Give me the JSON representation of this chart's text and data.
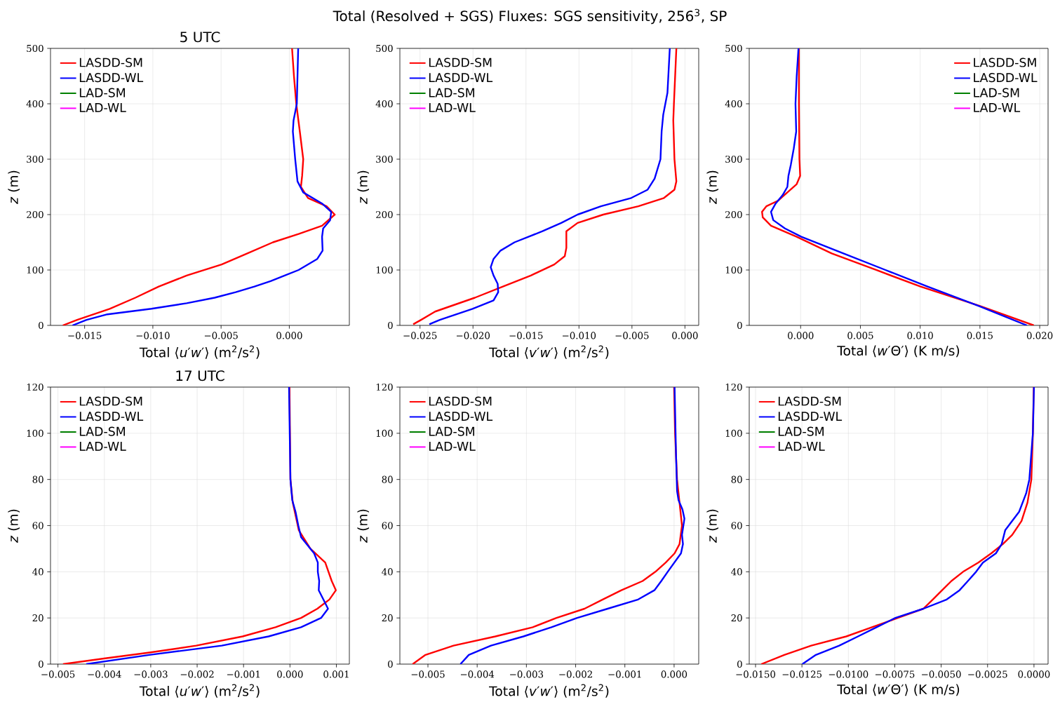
{
  "chart_data": [
    {
      "type": "line",
      "title": "5 UTC",
      "annotations": [
        "Total (Resolved + SGS) Fluxes: SGS sensitivity, 256$^{3}$, SP"
      ],
      "xlabel": "Total ⟨*u*′*w*′⟩ (m$^{2}$/s$^{2}$)",
      "ylabel": "*z* (m)",
      "xlim": [
        -0.0175,
        0.0044
      ],
      "ylim": [
        0,
        500
      ],
      "xticks": [
        {
          "value": -0.015,
          "label": "−0.015"
        },
        {
          "value": -0.01,
          "label": "−0.010"
        },
        {
          "value": -0.005,
          "label": "−0.005"
        },
        {
          "value": 0,
          "label": "0.000"
        }
      ],
      "yticks": [
        0,
        100,
        200,
        300,
        400,
        500
      ],
      "grid": true,
      "legend": "top left",
      "series": [
        {
          "name": "LASDD-SM",
          "color": "#ff0000",
          "x": [
            -0.0166,
            -0.01555,
            -0.01316,
            -0.01128,
            -0.00957,
            -0.00752,
            -0.00496,
            -0.00308,
            -0.0012,
            0.00068,
            0.0024,
            0.00333,
            0.00273,
            0.00137,
            0.00085,
            0.00094,
            0.00102,
            0.00077,
            0.00051,
            0.00034,
            0.0002
          ],
          "values": [
            0,
            10,
            30,
            50,
            70,
            90,
            110,
            130,
            150,
            165,
            180,
            200,
            215,
            230,
            250,
            270,
            300,
            350,
            400,
            450,
            500
          ]
        },
        {
          "name": "LASDD-WL",
          "color": "#0000ff",
          "x": [
            -0.01589,
            -0.01486,
            -0.01333,
            -0.0101,
            -0.00752,
            -0.00547,
            -0.00393,
            -0.00256,
            -0.00137,
            -0.00034,
            0.00068,
            0.00205,
            0.00244,
            0.0024,
            0.00248,
            0.00299,
            0.00307,
            0.0024,
            0.00102,
            0.0006,
            0.00043,
            0.00026,
            0.00031,
            0.00055,
            0.00065
          ],
          "values": [
            0,
            10,
            20,
            30,
            40,
            50,
            60,
            70,
            80,
            90,
            100,
            120,
            135,
            160,
            175,
            190,
            205,
            220,
            240,
            260,
            300,
            350,
            370,
            400,
            500
          ]
        },
        {
          "name": "LAD-SM",
          "color": "#008000"
        },
        {
          "name": "LAD-WL",
          "color": "#ff00ff"
        }
      ]
    },
    {
      "type": "line",
      "xlabel": "Total ⟨*v*′*w*′⟩ (m$^{2}$/s$^{2}$)",
      "ylabel": "*z* (m)",
      "xlim": [
        -0.0269,
        0.0013
      ],
      "ylim": [
        0,
        500
      ],
      "xticks": [
        {
          "value": -0.025,
          "label": "−0.025"
        },
        {
          "value": -0.02,
          "label": "−0.020"
        },
        {
          "value": -0.015,
          "label": "−0.015"
        },
        {
          "value": -0.01,
          "label": "−0.010"
        },
        {
          "value": -0.005,
          "label": "−0.005"
        },
        {
          "value": 0,
          "label": "0.000"
        }
      ],
      "yticks": [
        0,
        100,
        200,
        300,
        400,
        500
      ],
      "grid": true,
      "legend": "top left",
      "series": [
        {
          "name": "LASDD-SM",
          "color": "#ff0000",
          "x": [
            -0.02564,
            -0.0249,
            -0.02357,
            -0.01982,
            -0.01718,
            -0.01454,
            -0.01233,
            -0.01134,
            -0.01119,
            -0.01119,
            -0.01013,
            -0.00771,
            -0.0044,
            -0.00198,
            -0.00099,
            -0.00081,
            -0.00099,
            -0.0011,
            -0.00104,
            -0.00081
          ],
          "values": [
            2,
            10,
            25,
            50,
            70,
            90,
            110,
            125,
            140,
            170,
            185,
            200,
            215,
            230,
            245,
            260,
            300,
            370,
            400,
            500
          ]
        },
        {
          "name": "LASDD-WL",
          "color": "#0000ff",
          "x": [
            -0.02412,
            -0.02313,
            -0.02004,
            -0.01806,
            -0.01762,
            -0.01767,
            -0.01806,
            -0.01833,
            -0.01806,
            -0.0174,
            -0.01608,
            -0.01344,
            -0.01167,
            -0.01013,
            -0.00793,
            -0.00507,
            -0.00352,
            -0.00286,
            -0.00231,
            -0.0022,
            -0.00205,
            -0.00165,
            -0.00143
          ],
          "values": [
            2,
            10,
            30,
            45,
            60,
            75,
            90,
            105,
            120,
            135,
            150,
            170,
            185,
            200,
            215,
            230,
            245,
            265,
            300,
            350,
            380,
            420,
            500
          ]
        },
        {
          "name": "LAD-SM",
          "color": "#008000"
        },
        {
          "name": "LAD-WL",
          "color": "#ff00ff"
        }
      ]
    },
    {
      "type": "line",
      "xlabel": "Total ⟨*w*′Θ′⟩ (K m/s)",
      "ylabel": "*z* (m)",
      "xlim": [
        -0.0043,
        0.0207
      ],
      "ylim": [
        0,
        500
      ],
      "xticks": [
        {
          "value": 0,
          "label": "0.000"
        },
        {
          "value": 0.005,
          "label": "0.005"
        },
        {
          "value": 0.01,
          "label": "0.010"
        },
        {
          "value": 0.015,
          "label": "0.015"
        },
        {
          "value": 0.02,
          "label": "0.020"
        }
      ],
      "yticks": [
        0,
        100,
        200,
        300,
        400,
        500
      ],
      "grid": true,
      "legend": "top right",
      "series": [
        {
          "name": "LASDD-SM",
          "color": "#ff0000",
          "x": [
            0.01951,
            0.01501,
            0.01003,
            0.00632,
            0.0026,
            -0.00033,
            -0.00248,
            -0.00317,
            -0.00323,
            -0.00287,
            -0.0019,
            -0.00111,
            -0.00033,
            -4e-05,
            -0.0001,
            -0.00014,
            -0.00014
          ],
          "values": [
            0,
            35,
            70,
            100,
            130,
            160,
            180,
            195,
            205,
            215,
            225,
            240,
            255,
            270,
            300,
            400,
            500
          ]
        },
        {
          "name": "LASDD-WL",
          "color": "#0000ff",
          "x": [
            0.01893,
            0.01491,
            0.01062,
            0.0071,
            0.00358,
            6e-05,
            -0.00131,
            -0.00229,
            -0.00248,
            -0.00209,
            -0.00151,
            -0.00111,
            -0.00102,
            -0.00082,
            -0.00057,
            -0.00037,
            -0.00043,
            -0.00033,
            -0.00018
          ],
          "values": [
            0,
            35,
            70,
            100,
            130,
            160,
            175,
            190,
            205,
            220,
            235,
            250,
            270,
            290,
            320,
            350,
            400,
            450,
            500
          ]
        },
        {
          "name": "LAD-SM",
          "color": "#008000"
        },
        {
          "name": "LAD-WL",
          "color": "#ff00ff"
        }
      ]
    },
    {
      "type": "line",
      "title": "17 UTC",
      "xlabel": "Total ⟨*u*′*w*′⟩ (m$^{2}$/s$^{2}$)",
      "ylabel": "*z* (m)",
      "xlim": [
        -0.00516,
        0.00128
      ],
      "ylim": [
        0,
        120
      ],
      "xticks": [
        {
          "value": -0.005,
          "label": "−0.005"
        },
        {
          "value": -0.004,
          "label": "−0.004"
        },
        {
          "value": -0.003,
          "label": "−0.003"
        },
        {
          "value": -0.002,
          "label": "−0.002"
        },
        {
          "value": -0.001,
          "label": "−0.001"
        },
        {
          "value": 0,
          "label": "0.000"
        },
        {
          "value": 0.001,
          "label": "0.001"
        }
      ],
      "yticks": [
        0,
        20,
        40,
        60,
        80,
        100,
        120
      ],
      "grid": true,
      "legend": "top left",
      "series": [
        {
          "name": "LASDD-SM",
          "color": "#ff0000",
          "x": [
            -0.00489,
            -0.00398,
            -0.00303,
            -0.00202,
            -0.00102,
            -0.00031,
            0.00024,
            0.00059,
            0.00085,
            0.00099,
            0.0009,
            0.00076,
            0.00044,
            0.00019,
            6e-05,
            1e-05,
            -1e-05
          ],
          "values": [
            0,
            2.5,
            5,
            8,
            12,
            16,
            20,
            24,
            28,
            32,
            36,
            44,
            50,
            58,
            70,
            80,
            120
          ]
        },
        {
          "name": "LASDD-WL",
          "color": "#0000ff",
          "x": [
            -0.00439,
            -0.00303,
            -0.00147,
            -0.00046,
            0.00024,
            0.00067,
            0.00082,
            0.00072,
            0.00062,
            0.00063,
            0.0006,
            0.0006,
            0.00052,
            0.00024,
            0.00018,
            0.00012,
            5e-05,
            1e-05,
            -2e-05
          ],
          "values": [
            0,
            4,
            8,
            12,
            16,
            20,
            24,
            28,
            32,
            36,
            40,
            44,
            48,
            55,
            60,
            66,
            71,
            80,
            120
          ]
        },
        {
          "name": "LAD-SM",
          "color": "#008000"
        },
        {
          "name": "LAD-WL",
          "color": "#ff00ff"
        }
      ]
    },
    {
      "type": "line",
      "xlabel": "Total ⟨*v*′*w*′⟩ (m$^{2}$/s$^{2}$)",
      "ylabel": "*z* (m)",
      "xlim": [
        -0.00557,
        0.0005
      ],
      "ylim": [
        0,
        120
      ],
      "xticks": [
        {
          "value": -0.005,
          "label": "−0.005"
        },
        {
          "value": -0.004,
          "label": "−0.004"
        },
        {
          "value": -0.003,
          "label": "−0.003"
        },
        {
          "value": -0.002,
          "label": "−0.002"
        },
        {
          "value": -0.001,
          "label": "−0.001"
        },
        {
          "value": 0,
          "label": "0.000"
        }
      ],
      "yticks": [
        0,
        20,
        40,
        60,
        80,
        100,
        120
      ],
      "grid": true,
      "legend": "top left",
      "series": [
        {
          "name": "LASDD-SM",
          "color": "#ff0000",
          "x": [
            -0.00531,
            -0.00505,
            -0.00448,
            -0.00363,
            -0.00287,
            -0.00239,
            -0.00182,
            -0.00145,
            -0.00107,
            -0.00064,
            -0.00038,
            -0.00017,
            1e-05,
            0.00011,
            0.00016,
            0.00011,
            6e-05,
            2e-05,
            0
          ],
          "values": [
            0,
            4,
            8,
            12,
            16,
            20,
            24,
            28,
            32,
            36,
            40,
            44,
            48,
            52,
            60,
            70,
            80,
            100,
            120
          ]
        },
        {
          "name": "LASDD-WL",
          "color": "#0000ff",
          "x": [
            -0.00434,
            -0.00417,
            -0.00372,
            -0.00306,
            -0.00249,
            -0.00197,
            -0.00135,
            -0.00073,
            -0.0004,
            -0.00026,
            -0.00013,
            0.00014,
            0.00018,
            0.00016,
            0.00021,
            0.00017,
            9e-05,
            6e-05,
            4e-05,
            1e-05
          ],
          "values": [
            0,
            4,
            8,
            12,
            16,
            20,
            24,
            28,
            32,
            36,
            40,
            48,
            52,
            56,
            63,
            67,
            71,
            75,
            90,
            120
          ]
        },
        {
          "name": "LAD-SM",
          "color": "#008000"
        },
        {
          "name": "LAD-WL",
          "color": "#ff00ff"
        }
      ]
    },
    {
      "type": "line",
      "xlabel": "Total ⟨*w*′Θ′⟩ (K m/s)",
      "ylabel": "*z* (m)",
      "xlim": [
        -0.01534,
        0.00076
      ],
      "ylim": [
        0,
        120
      ],
      "xticks": [
        {
          "value": -0.015,
          "label": "−0.0150"
        },
        {
          "value": -0.0125,
          "label": "−0.0125"
        },
        {
          "value": -0.01,
          "label": "−0.0100"
        },
        {
          "value": -0.0075,
          "label": "−0.0075"
        },
        {
          "value": -0.005,
          "label": "−0.0050"
        },
        {
          "value": -0.0025,
          "label": "−0.0025"
        },
        {
          "value": 0,
          "label": "0.0000"
        }
      ],
      "yticks": [
        0,
        20,
        40,
        60,
        80,
        100,
        120
      ],
      "grid": true,
      "legend": "top left",
      "series": [
        {
          "name": "LASDD-SM",
          "color": "#ff0000",
          "x": [
            -0.01469,
            -0.01345,
            -0.012,
            -0.01011,
            -0.00873,
            -0.00734,
            -0.00596,
            -0.00545,
            -0.00495,
            -0.00445,
            -0.00382,
            -0.003,
            -0.0023,
            -0.00168,
            -0.00117,
            -0.00067,
            -0.00035,
            -0.00014,
            -6e-05,
            -1e-05
          ],
          "values": [
            0,
            4,
            8,
            12,
            16,
            20,
            24,
            28,
            32,
            36,
            40,
            44,
            48,
            52,
            56,
            62,
            70,
            80,
            100,
            120
          ]
        },
        {
          "name": "LASDD-WL",
          "color": "#0000ff",
          "x": [
            -0.01248,
            -0.01175,
            -0.01049,
            -0.00948,
            -0.00848,
            -0.00747,
            -0.00596,
            -0.0047,
            -0.00401,
            -0.00356,
            -0.00312,
            -0.00275,
            -0.00205,
            -0.00174,
            -0.00155,
            -0.0008,
            -0.00042,
            -0.00025,
            -6e-05,
            0
          ],
          "values": [
            0,
            4,
            8,
            12,
            16,
            20,
            24,
            28,
            32,
            36,
            40,
            44,
            48,
            52,
            58,
            66,
            74,
            80,
            100,
            120
          ]
        },
        {
          "name": "LAD-SM",
          "color": "#008000"
        },
        {
          "name": "LAD-WL",
          "color": "#ff00ff"
        }
      ]
    }
  ]
}
